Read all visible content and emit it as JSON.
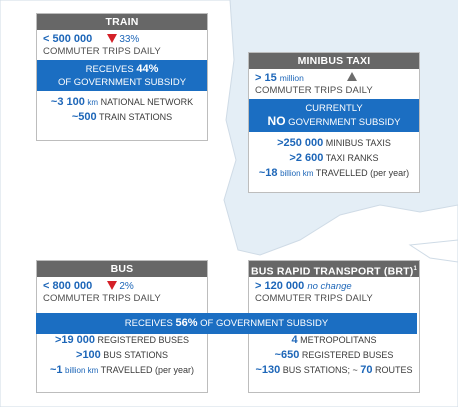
{
  "train": {
    "title": "TRAIN",
    "trips_value": "< 500 000",
    "trips_change": "33%",
    "trips_label": "COMMUTER TRIPS DAILY",
    "subsidy_prefix": "RECEIVES ",
    "subsidy_pct": "44%",
    "subsidy_suffix": "OF GOVERNMENT SUBSIDY",
    "stats": [
      {
        "num": "~3 100",
        "unit": "km",
        "text": " NATIONAL NETWORK"
      },
      {
        "num": "~500",
        "unit": "",
        "text": " TRAIN STATIONS"
      }
    ]
  },
  "minibus": {
    "title": "MINIBUS TAXI",
    "trips_value": "> 15",
    "trips_unit": "million",
    "trips_label": "COMMUTER TRIPS DAILY",
    "subsidy_line1": "CURRENTLY",
    "subsidy_no": "NO",
    "subsidy_suffix": " GOVERNMENT SUBSIDY",
    "stats": [
      {
        "num": ">250 000",
        "unit": "",
        "text": " MINIBUS TAXIS"
      },
      {
        "num": ">2 600",
        "unit": "",
        "text": " TAXI RANKS"
      },
      {
        "num": "~18",
        "unit": "billion km",
        "text": " TRAVELLED (per year)"
      }
    ]
  },
  "bus": {
    "title": "BUS",
    "trips_value": "< 800 000",
    "trips_change": "2%",
    "trips_label": "COMMUTER TRIPS DAILY",
    "stats": [
      {
        "num": ">19 000",
        "unit": "",
        "text": " REGISTERED BUSES"
      },
      {
        "num": ">100",
        "unit": "",
        "text": " BUS STATIONS"
      },
      {
        "num": "~1",
        "unit": "billion km",
        "text": " TRAVELLED (per year)"
      }
    ]
  },
  "brt": {
    "title": "BUS RAPID TRANSPORT (BRT)",
    "title_sup": "1",
    "trips_value": "> 120 000",
    "trips_note": "no change",
    "trips_label": "COMMUTER TRIPS DAILY",
    "stats": [
      {
        "num": "4",
        "unit": "",
        "text": " METROPOLITANS"
      },
      {
        "num": "~650",
        "unit": "",
        "text": " REGISTERED BUSES"
      },
      {
        "num": "~130",
        "unit": "",
        "text": " BUS STATIONS; ~ ",
        "num2": "70",
        "text2": " ROUTES"
      }
    ]
  },
  "shared_subsidy": {
    "prefix": "RECEIVES ",
    "pct": "56%",
    "suffix": " OF GOVERNMENT SUBSIDY"
  },
  "colors": {
    "header": "#676767",
    "accent_blue": "#1b6ec2",
    "text_blue": "#1d66b8",
    "decrease_red": "#d42027",
    "map_land": "#ffffff",
    "map_sea": "#e4eef6"
  }
}
